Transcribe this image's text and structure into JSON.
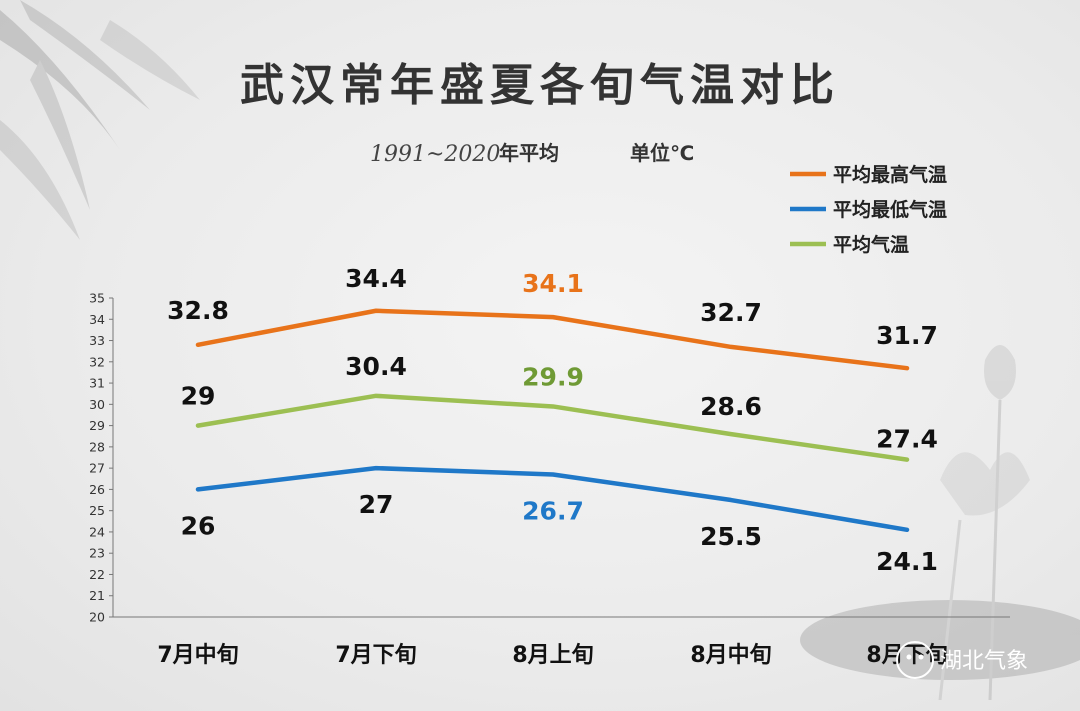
{
  "header": {
    "title": "武汉常年盛夏各旬气温对比",
    "subtitle_years": "1991~2020",
    "subtitle_avg": "年平均",
    "subtitle_unit": "单位℃"
  },
  "watermark": "湖北气象",
  "chart_data": {
    "type": "line",
    "categories": [
      "7月中旬",
      "7月下旬",
      "8月上旬",
      "8月中旬",
      "8月下旬"
    ],
    "ylim": [
      20,
      35
    ],
    "yticks": [
      20,
      21,
      22,
      23,
      24,
      25,
      26,
      27,
      28,
      29,
      30,
      31,
      32,
      33,
      34,
      35
    ],
    "grid": false,
    "legend_position": "top-right",
    "series": [
      {
        "name": "平均最高气温",
        "color": "#e8731a",
        "values": [
          32.8,
          34.4,
          34.1,
          32.7,
          31.7
        ],
        "labels": [
          "32.8",
          "34.4",
          "34.1",
          "32.7",
          "31.7"
        ],
        "label_colors": [
          "#111111",
          "#111111",
          "#e8731a",
          "#111111",
          "#111111"
        ]
      },
      {
        "name": "平均最低气温",
        "color": "#1f78c8",
        "values": [
          26,
          27,
          26.7,
          25.5,
          24.1
        ],
        "labels": [
          "26",
          "27",
          "26.7",
          "25.5",
          "24.1"
        ],
        "label_colors": [
          "#111111",
          "#111111",
          "#1f78c8",
          "#111111",
          "#111111"
        ]
      },
      {
        "name": "平均气温",
        "color": "#9cbf52",
        "values": [
          29,
          30.4,
          29.9,
          28.6,
          27.4
        ],
        "labels": [
          "29",
          "30.4",
          "29.9",
          "28.6",
          "27.4"
        ],
        "label_colors": [
          "#111111",
          "#111111",
          "#6f9a35",
          "#111111",
          "#111111"
        ]
      }
    ]
  }
}
